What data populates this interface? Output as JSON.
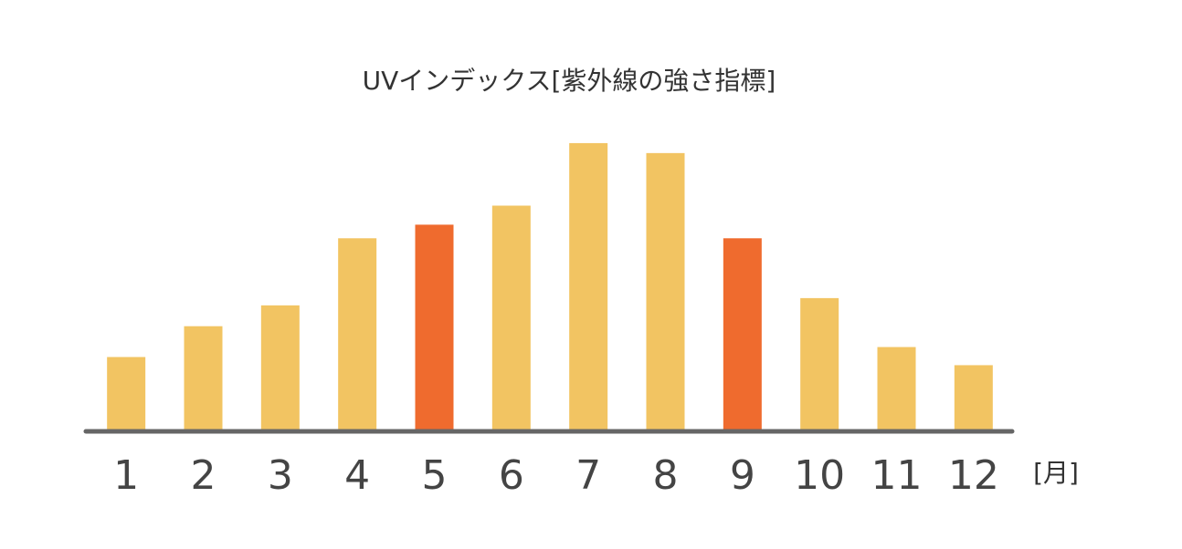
{
  "chart_data": {
    "type": "bar",
    "title": "UVインデックス[紫外線の強さ指標]",
    "categories": [
      "1",
      "2",
      "3",
      "4",
      "5",
      "6",
      "7",
      "8",
      "9",
      "10",
      "11",
      "12"
    ],
    "values": [
      81,
      115,
      138,
      212,
      227,
      248,
      317,
      306,
      212,
      146,
      92,
      72
    ],
    "colors": [
      "#f2c462",
      "#f2c462",
      "#f2c462",
      "#f2c462",
      "#ef6b2e",
      "#f2c462",
      "#f2c462",
      "#f2c462",
      "#ef6b2e",
      "#f2c462",
      "#f2c462",
      "#f2c462"
    ],
    "x_label": "[月]",
    "ylim": [
      0,
      330
    ]
  }
}
